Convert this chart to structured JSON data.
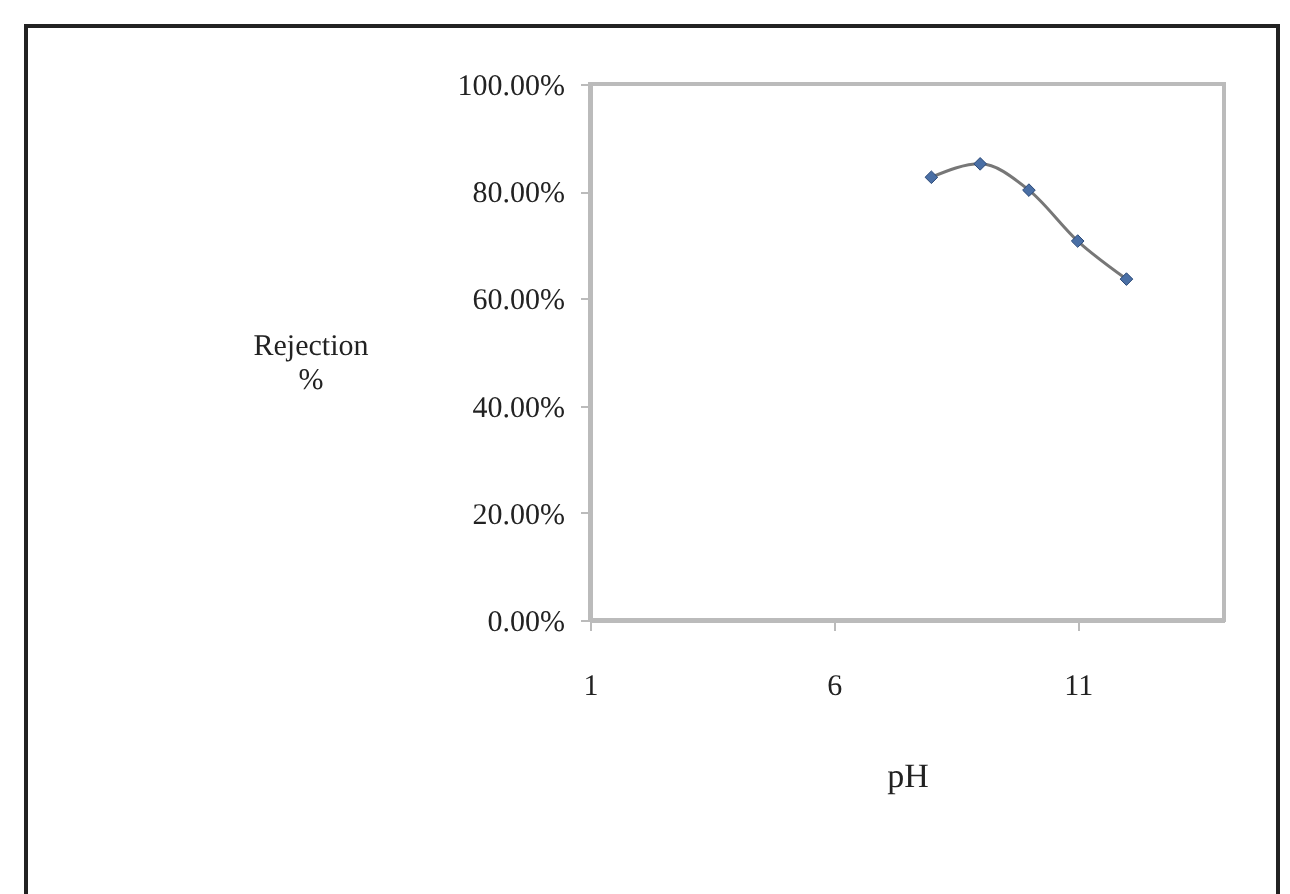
{
  "chart_data": {
    "type": "line",
    "xlabel": "pH",
    "ylabel": "Rejection %",
    "x": [
      8,
      9,
      10,
      11,
      12
    ],
    "series": [
      {
        "color": "#4a6fa5",
        "values": [
          82.6,
          85.1,
          80.2,
          70.7,
          63.6
        ]
      }
    ],
    "xlim": [
      1,
      14
    ],
    "xticks": [
      1,
      6,
      11
    ],
    "ylim": [
      0,
      100
    ],
    "yticks": [
      {
        "value": 0,
        "label": "0.00%"
      },
      {
        "value": 20,
        "label": "20.00%"
      },
      {
        "value": 40,
        "label": "40.00%"
      },
      {
        "value": 60,
        "label": "60.00%"
      },
      {
        "value": 80,
        "label": "80.00%"
      },
      {
        "value": 100,
        "label": "100.00%"
      }
    ],
    "grid": false,
    "marker": "diamond",
    "line_style": "solid"
  }
}
